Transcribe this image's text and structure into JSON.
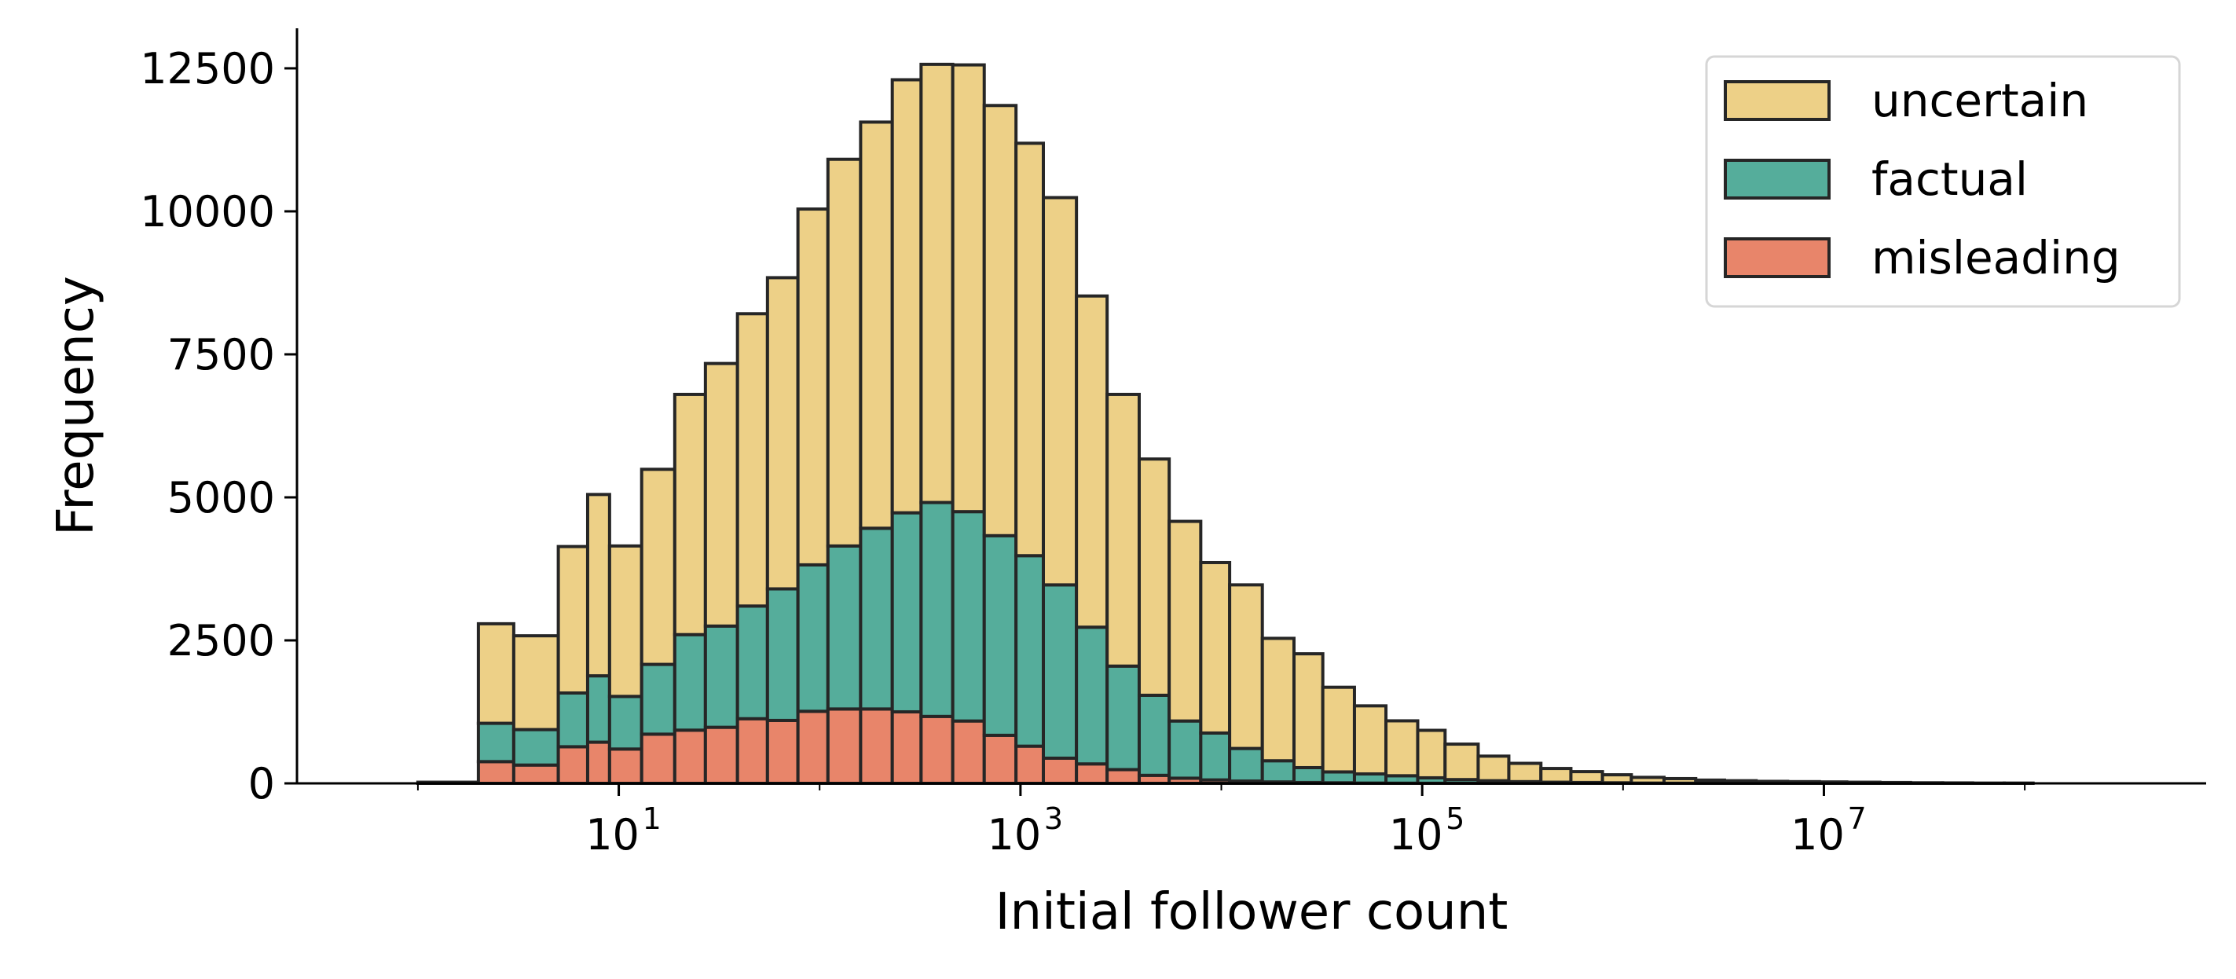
{
  "chart_data": {
    "type": "bar",
    "stacked": true,
    "x_scale": "log",
    "xlabel": "Initial follower count",
    "ylabel": "Frequency",
    "xlim": [
      0.25,
      800000000
    ],
    "ylim": [
      0,
      13200
    ],
    "x_ticks": [
      {
        "base": "10",
        "exp": "1",
        "value": 10
      },
      {
        "base": "10",
        "exp": "3",
        "value": 1000
      },
      {
        "base": "10",
        "exp": "5",
        "value": 100000
      },
      {
        "base": "10",
        "exp": "7",
        "value": 10000000
      }
    ],
    "y_ticks": [
      "0",
      "2500",
      "5000",
      "7500",
      "10000",
      "12500"
    ],
    "y_tick_values": [
      0,
      2500,
      5000,
      7500,
      10000,
      12500
    ],
    "legend_position": "top-right",
    "bin_edges": [
      1,
      2,
      3,
      5,
      7,
      9,
      13,
      19,
      27,
      39,
      55,
      78,
      110,
      160,
      230,
      320,
      460,
      660,
      950,
      1300,
      1900,
      2700,
      3900,
      5500,
      7900,
      11000,
      16000,
      23000,
      32000,
      46000,
      66000,
      95000,
      130000,
      190000,
      270000,
      390000,
      550000,
      790000,
      1100000,
      1600000,
      2300000,
      3200000,
      4600000,
      6600000,
      9500000,
      13000000,
      19000000,
      27000000,
      39000000,
      55000000,
      79000000,
      110000000
    ],
    "series": [
      {
        "name": "misleading",
        "color": "#e8856a",
        "values": [
          0,
          380,
          320,
          640,
          720,
          600,
          860,
          930,
          980,
          1130,
          1100,
          1260,
          1300,
          1300,
          1250,
          1170,
          1090,
          840,
          650,
          440,
          340,
          240,
          140,
          90,
          60,
          40,
          25,
          15,
          10,
          5,
          3,
          2,
          1,
          1,
          0,
          0,
          0,
          0,
          0,
          0,
          0,
          0,
          0,
          0,
          0,
          0,
          0,
          0,
          0,
          0,
          0
        ]
      },
      {
        "name": "factual",
        "color": "#55ad9b",
        "values": [
          0,
          670,
          620,
          940,
          1160,
          920,
          1220,
          1670,
          1770,
          1970,
          2300,
          2560,
          2850,
          3160,
          3480,
          3740,
          3660,
          3490,
          3330,
          3030,
          2390,
          1810,
          1400,
          1000,
          820,
          570,
          370,
          260,
          190,
          160,
          130,
          95,
          65,
          45,
          30,
          20,
          15,
          10,
          5,
          3,
          2,
          1,
          0,
          0,
          0,
          0,
          0,
          0,
          0,
          0,
          0
        ]
      },
      {
        "name": "uncertain",
        "color": "#edd087",
        "values": [
          20,
          1740,
          1640,
          2560,
          3170,
          2630,
          3410,
          4200,
          4590,
          5110,
          5440,
          6220,
          6760,
          7100,
          7570,
          7660,
          7810,
          7520,
          7210,
          6770,
          5790,
          4750,
          4130,
          3490,
          2980,
          2860,
          2140,
          1990,
          1480,
          1190,
          960,
          830,
          620,
          430,
          320,
          240,
          190,
          140,
          100,
          80,
          55,
          45,
          35,
          30,
          25,
          20,
          15,
          10,
          8,
          5,
          5
        ]
      }
    ]
  }
}
